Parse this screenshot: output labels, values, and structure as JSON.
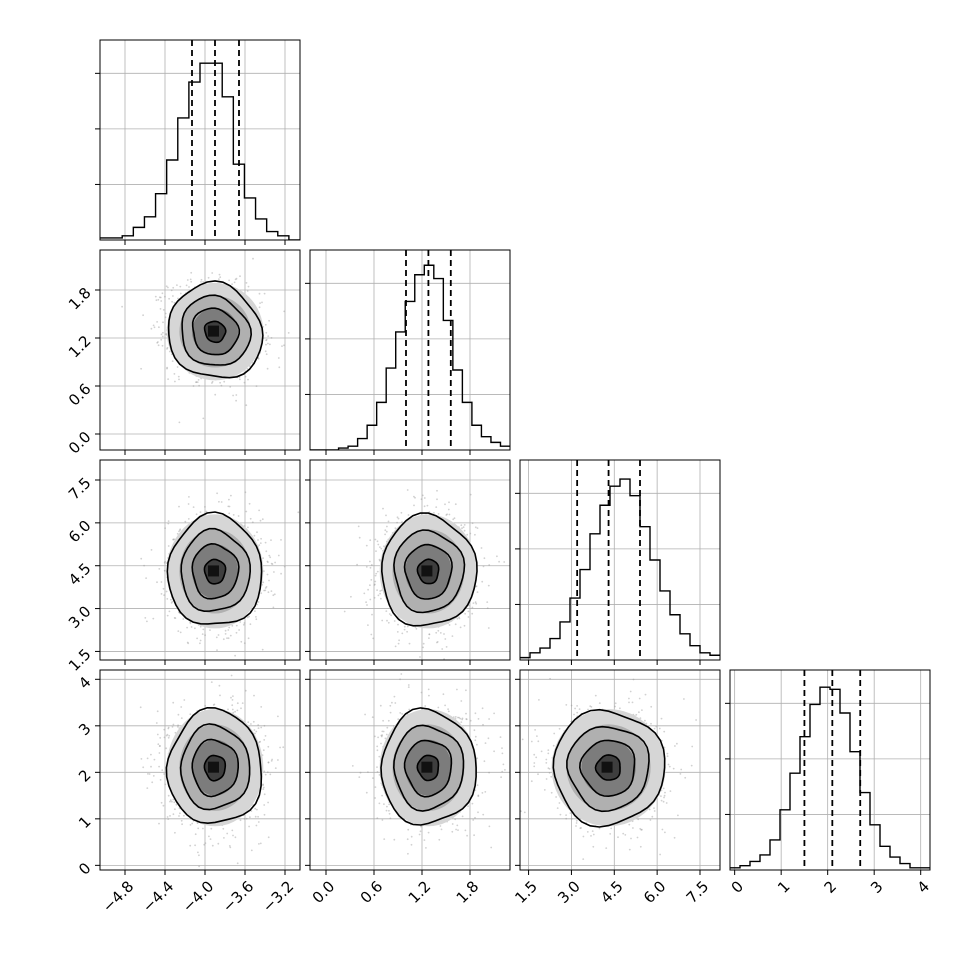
{
  "chart_data": {
    "type": "corner",
    "grid": true,
    "parameters": [
      {
        "range": [
          -5.05,
          -3.05
        ],
        "ticks": [
          -4.8,
          -4.4,
          -4.0,
          -3.6,
          -3.2
        ],
        "tick_labels": [
          "−4.8",
          "−4.4",
          "−4.0",
          "−3.6",
          "−3.2"
        ],
        "quantiles": [
          -4.13,
          -3.9,
          -3.66
        ],
        "hist_counts": [
          1,
          1,
          2,
          6,
          11,
          22,
          38,
          58,
          75,
          84,
          84,
          68,
          36,
          20,
          10,
          4,
          2,
          0
        ],
        "ymax": 95
      },
      {
        "range": [
          -0.2,
          2.3
        ],
        "ticks": [
          0.0,
          0.6,
          1.2,
          1.8
        ],
        "tick_labels": [
          "0.0",
          "0.6",
          "1.2",
          "1.8"
        ],
        "quantiles": [
          1.0,
          1.28,
          1.56
        ],
        "hist_counts": [
          0,
          0,
          0,
          1,
          2,
          6,
          13,
          25,
          43,
          62,
          78,
          92,
          97,
          90,
          68,
          42,
          25,
          13,
          7,
          4,
          2
        ],
        "ymax": 105
      },
      {
        "range": [
          1.2,
          8.2
        ],
        "ticks": [
          1.5,
          3.0,
          4.5,
          6.0,
          7.5
        ],
        "tick_labels": [
          "1.5",
          "3.0",
          "4.5",
          "6.0",
          "7.5"
        ],
        "quantiles": [
          3.2,
          4.3,
          5.4
        ],
        "hist_counts": [
          1,
          3,
          5,
          9,
          16,
          26,
          38,
          53,
          65,
          73,
          76,
          69,
          56,
          42,
          29,
          19,
          11,
          6,
          3,
          2
        ],
        "ymax": 84
      },
      {
        "range": [
          -0.1,
          4.2
        ],
        "ticks": [
          0,
          1,
          2,
          3,
          4
        ],
        "tick_labels": [
          "0",
          "1",
          "2",
          "3",
          "4"
        ],
        "quantiles": [
          1.5,
          2.1,
          2.7
        ],
        "hist_counts": [
          1,
          2,
          4,
          7,
          14,
          28,
          45,
          62,
          77,
          85,
          84,
          73,
          55,
          36,
          21,
          11,
          6,
          3,
          1,
          1
        ],
        "ymax": 93
      }
    ],
    "pairs": [
      {
        "x_param": 0,
        "y_param": 1,
        "center": [
          -3.9,
          1.28
        ],
        "sigma": [
          0.23,
          0.29
        ],
        "rho": -0.15
      },
      {
        "x_param": 0,
        "y_param": 2,
        "center": [
          -3.9,
          4.3
        ],
        "sigma": [
          0.23,
          0.95
        ],
        "rho": 0.0
      },
      {
        "x_param": 1,
        "y_param": 2,
        "center": [
          1.28,
          4.3
        ],
        "sigma": [
          0.29,
          0.95
        ],
        "rho": 0.0
      },
      {
        "x_param": 0,
        "y_param": 3,
        "center": [
          -3.9,
          2.1
        ],
        "sigma": [
          0.23,
          0.6
        ],
        "rho": 0.0
      },
      {
        "x_param": 1,
        "y_param": 3,
        "center": [
          1.28,
          2.1
        ],
        "sigma": [
          0.29,
          0.6
        ],
        "rho": 0.0
      },
      {
        "x_param": 2,
        "y_param": 3,
        "center": [
          4.3,
          2.1
        ],
        "sigma": [
          0.95,
          0.6
        ],
        "rho": 0.0
      }
    ]
  }
}
